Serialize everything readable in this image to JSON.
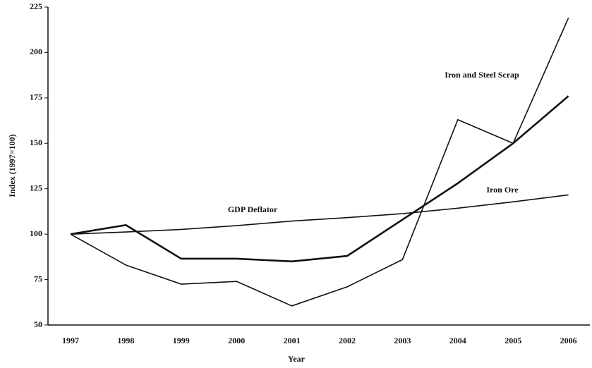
{
  "chart_data": {
    "type": "line",
    "x_label": "Year",
    "y_label": "Index (1997=100)",
    "categories": [
      "1997",
      "1998",
      "1999",
      "2000",
      "2001",
      "2002",
      "2003",
      "2004",
      "2005",
      "2006"
    ],
    "series": [
      {
        "name": "GDP Deflator",
        "color": "#111111",
        "line_width": 1.6,
        "values": [
          100,
          101.2,
          102.6,
          104.7,
          107.2,
          109.1,
          111.3,
          114.3,
          117.8,
          121.6
        ]
      },
      {
        "name": "Iron Ore",
        "color": "#111111",
        "line_width": 2.6,
        "values": [
          100,
          105,
          86.5,
          86.5,
          85,
          88,
          108,
          128,
          150,
          176
        ]
      },
      {
        "name": "Iron and Steel Scrap",
        "color": "#111111",
        "line_width": 1.6,
        "values": [
          100,
          83,
          72.5,
          74,
          60.5,
          71,
          86,
          163,
          150,
          219
        ]
      }
    ],
    "ylim": [
      50,
      225
    ],
    "yticks": [
      50,
      75,
      100,
      125,
      150,
      175,
      200,
      225
    ],
    "grid": false
  }
}
